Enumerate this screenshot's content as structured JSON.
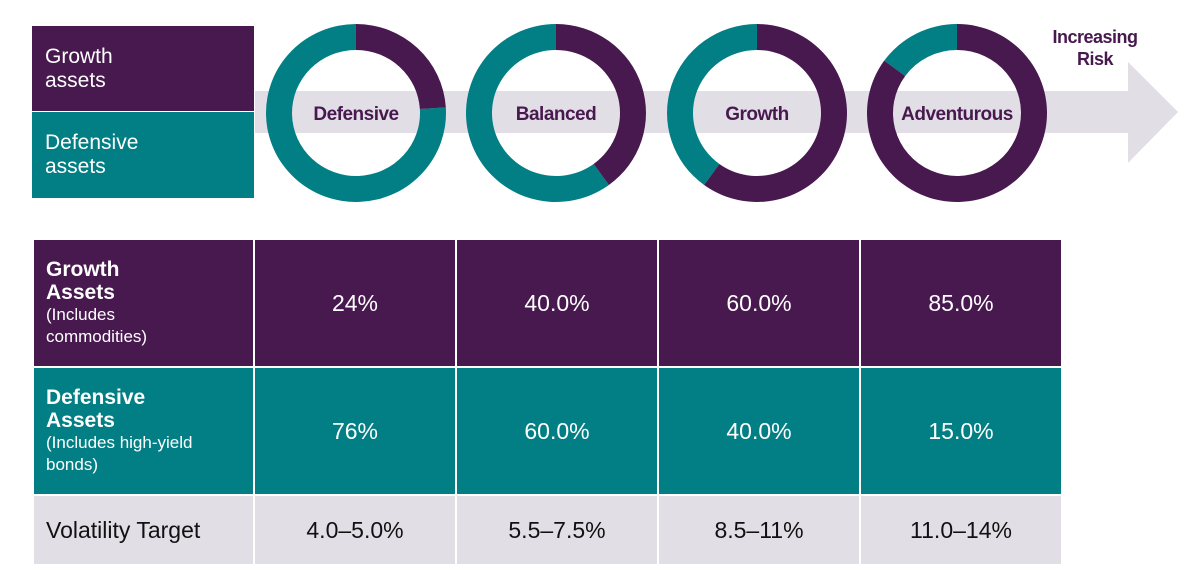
{
  "legend": {
    "growth": {
      "label": "Growth assets",
      "color": "#48194f"
    },
    "defensive": {
      "label": "Defensive assets",
      "color": "#027f84"
    }
  },
  "arrow": {
    "label_line1": "Increasing",
    "label_line2": "Risk",
    "color": "#e2dee6"
  },
  "chart_data": {
    "type": "pie",
    "variant": "donut",
    "title": "",
    "series": [
      {
        "name": "Growth assets",
        "color": "#48194f"
      },
      {
        "name": "Defensive assets",
        "color": "#027f84"
      }
    ],
    "categories": [
      "Defensive",
      "Balanced",
      "Growth",
      "Adventurous"
    ],
    "values": [
      {
        "portfolio": "Defensive",
        "growth": 24,
        "defensive": 76
      },
      {
        "portfolio": "Balanced",
        "growth": 40,
        "defensive": 60
      },
      {
        "portfolio": "Growth",
        "growth": 60,
        "defensive": 40
      },
      {
        "portfolio": "Adventurous",
        "growth": 85,
        "defensive": 15
      }
    ],
    "annotation": "Increasing Risk"
  },
  "table": {
    "rows": [
      {
        "title": "Growth Assets",
        "subtitle": "(Includes commodities)",
        "values": [
          "24%",
          "40.0%",
          "60.0%",
          "85.0%"
        ]
      },
      {
        "title": "Defensive Assets",
        "subtitle": "(Includes high-yield bonds)",
        "values": [
          "76%",
          "60.0%",
          "40.0%",
          "15.0%"
        ]
      },
      {
        "title": "Volatility Target",
        "values": [
          "4.0–5.0%",
          "5.5–7.5%",
          "8.5–11%",
          "11.0–14%"
        ]
      }
    ]
  }
}
